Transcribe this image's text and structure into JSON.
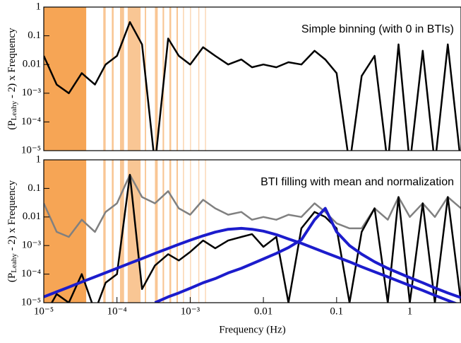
{
  "chart_data": [
    {
      "type": "line",
      "annotation": "Simple binning (with 0 in BTIs)",
      "ylabel": [
        "(P",
        "Leahy",
        " - 2) x Frequency"
      ],
      "xscale": "log",
      "yscale": "log",
      "xlim": [
        1e-05,
        5
      ],
      "ylim": [
        1e-05,
        1
      ],
      "yticks": [
        {
          "value": 1e-05,
          "label": "10⁻⁵"
        },
        {
          "value": 0.0001,
          "label": "10⁻⁴"
        },
        {
          "value": 0.001,
          "label": "10⁻³"
        },
        0.01,
        0.1,
        1
      ],
      "bti_color": "#f5a04c",
      "bti_regions": [
        [
          1e-05,
          3.8e-05
        ],
        [
          6.5e-05,
          7e-05
        ],
        [
          8.5e-05,
          9e-05
        ],
        [
          0.00011,
          0.000125
        ],
        [
          0.00014,
          0.00021
        ],
        [
          0.00024,
          0.00025
        ],
        [
          0.00033,
          0.00036
        ],
        [
          0.00042,
          0.00044
        ],
        [
          0.00052,
          0.00055
        ],
        [
          0.00065,
          0.00068
        ],
        [
          0.0008,
          0.00082
        ],
        [
          0.001,
          0.00102
        ],
        [
          0.0013,
          0.00132
        ],
        [
          0.0016,
          0.00161
        ]
      ],
      "x": [
        1e-05,
        1.5e-05,
        2.2e-05,
        3.3e-05,
        5e-05,
        7e-05,
        0.0001,
        0.00015,
        0.00022,
        0.00033,
        0.0005,
        0.0007,
        0.001,
        0.0015,
        0.0022,
        0.0033,
        0.005,
        0.007,
        0.01,
        0.015,
        0.022,
        0.033,
        0.05,
        0.07,
        0.1,
        0.15,
        0.22,
        0.33,
        0.5,
        0.7,
        1,
        1.5,
        2.2,
        3.3,
        5
      ],
      "series": [
        {
          "color": "#000000",
          "width": 2.5,
          "values": [
            0.02,
            0.002,
            0.001,
            0.005,
            0.002,
            0.01,
            0.02,
            0.3,
            0.05,
            1e-06,
            0.08,
            0.02,
            0.01,
            0.04,
            0.02,
            0.01,
            0.015,
            0.008,
            0.01,
            0.008,
            0.012,
            0.01,
            0.03,
            0.015,
            0.005,
            1e-06,
            0.004,
            0.02,
            1e-06,
            0.05,
            1e-06,
            0.03,
            1e-06,
            0.05,
            1e-06
          ]
        }
      ]
    },
    {
      "type": "line",
      "annotation": "BTI filling with mean and normalization",
      "ylabel": [
        "(P",
        "Leahy",
        " - 2) x Frequency"
      ],
      "xlabel": "Frequency (Hz)",
      "xscale": "log",
      "yscale": "log",
      "xlim": [
        1e-05,
        5
      ],
      "ylim": [
        1e-05,
        1
      ],
      "xticks": [
        {
          "value": 1e-05,
          "label": "10⁻⁵"
        },
        {
          "value": 0.0001,
          "label": "10⁻⁴"
        },
        {
          "value": 0.001,
          "label": "10⁻³"
        },
        0.01,
        0.1,
        1
      ],
      "yticks": [
        {
          "value": 1e-05,
          "label": "10⁻⁵"
        },
        {
          "value": 0.0001,
          "label": "10⁻⁴"
        },
        {
          "value": 0.001,
          "label": "10⁻³"
        },
        0.01,
        0.1,
        1
      ],
      "bti_color": "#f5a04c",
      "bti_regions": [
        [
          1e-05,
          3.8e-05
        ],
        [
          6.5e-05,
          7e-05
        ],
        [
          8.5e-05,
          9e-05
        ],
        [
          0.00011,
          0.000125
        ],
        [
          0.00014,
          0.00021
        ],
        [
          0.00024,
          0.00025
        ],
        [
          0.00033,
          0.00036
        ],
        [
          0.00042,
          0.00044
        ],
        [
          0.00052,
          0.00055
        ],
        [
          0.00065,
          0.00068
        ],
        [
          0.0008,
          0.00082
        ],
        [
          0.001,
          0.00102
        ],
        [
          0.0013,
          0.00132
        ],
        [
          0.0016,
          0.00161
        ]
      ],
      "x": [
        1e-05,
        1.5e-05,
        2.2e-05,
        3.3e-05,
        5e-05,
        7e-05,
        0.0001,
        0.00015,
        0.00022,
        0.00033,
        0.0005,
        0.0007,
        0.001,
        0.0015,
        0.0022,
        0.0033,
        0.005,
        0.007,
        0.01,
        0.015,
        0.022,
        0.033,
        0.05,
        0.07,
        0.1,
        0.15,
        0.22,
        0.33,
        0.5,
        0.7,
        1,
        1.5,
        2.2,
        3.3,
        5
      ],
      "series": [
        {
          "color": "#808080",
          "width": 2.5,
          "values": [
            0.03,
            0.003,
            0.002,
            0.008,
            0.003,
            0.015,
            0.03,
            0.3,
            0.05,
            0.03,
            0.08,
            0.02,
            0.012,
            0.04,
            0.02,
            0.012,
            0.015,
            0.008,
            0.01,
            0.008,
            0.012,
            0.01,
            0.03,
            0.015,
            0.006,
            0.004,
            0.004,
            0.02,
            0.008,
            0.05,
            0.01,
            0.03,
            0.01,
            0.05,
            0.02
          ]
        },
        {
          "color": "#000000",
          "width": 2.5,
          "values": [
            1e-06,
            2e-05,
            1e-05,
            0.0001,
            5e-06,
            5e-05,
            0.0001,
            0.3,
            3e-05,
            0.0002,
            0.0005,
            0.0003,
            0.0006,
            0.0015,
            0.0008,
            0.0015,
            0.002,
            0.0025,
            0.0009,
            0.002,
            1e-05,
            0.004,
            0.015,
            0.01,
            0.004,
            1e-05,
            0.003,
            0.02,
            1e-05,
            0.05,
            1e-05,
            0.03,
            1e-05,
            0.05,
            1e-05
          ]
        },
        {
          "color": "#1c1ccc",
          "width": 4,
          "values": [
            1.6e-05,
            2.4e-05,
            3.5e-05,
            5.3e-05,
            8e-05,
            0.000112,
            0.00016,
            0.00024,
            0.00035,
            0.00053,
            0.00079,
            0.0011,
            0.00154,
            0.0022,
            0.00295,
            0.0037,
            0.004,
            0.0037,
            0.0032,
            0.0024,
            0.0017,
            0.0012,
            0.00079,
            0.00057,
            0.0004,
            0.00027,
            0.00018,
            0.00012,
            8e-05,
            5.7e-05,
            4e-05,
            2.7e-05,
            1.8e-05,
            1.2e-05,
            8e-06
          ]
        },
        {
          "color": "#1c1ccc",
          "width": 4,
          "values": [
            null,
            null,
            null,
            null,
            null,
            null,
            null,
            null,
            null,
            1e-05,
            1.6e-05,
            2.2e-05,
            3.2e-05,
            5e-05,
            7e-05,
            0.00011,
            0.00016,
            0.00023,
            0.00034,
            0.00053,
            0.00085,
            0.0016,
            0.008,
            0.02,
            0.003,
            0.001,
            0.0005,
            0.00027,
            0.00016,
            0.00011,
            7.5e-05,
            5e-05,
            3.3e-05,
            2.2e-05,
            1.5e-05
          ]
        }
      ]
    }
  ]
}
